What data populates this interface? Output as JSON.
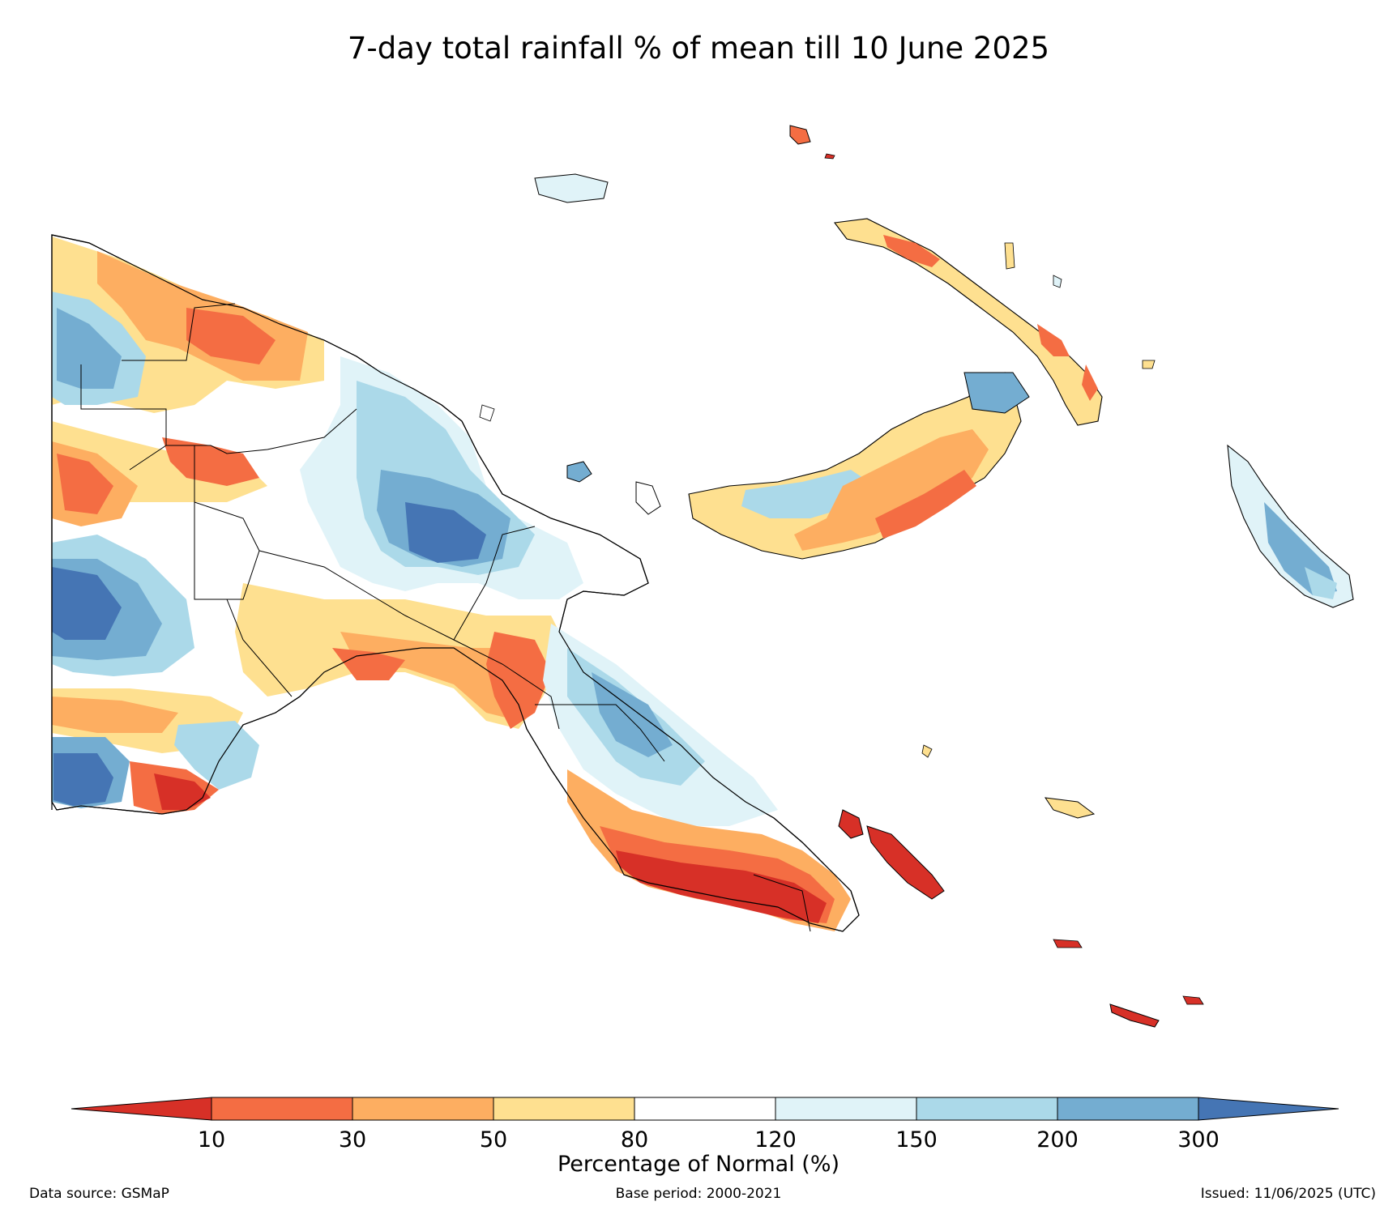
{
  "title": "7-day total rainfall % of mean till 10 June 2025",
  "colorbar": {
    "title": "Percentage of Normal (%)",
    "ticks": [
      "10",
      "30",
      "50",
      "80",
      "120",
      "150",
      "200",
      "300"
    ],
    "colors": [
      "#d73027",
      "#f46d43",
      "#fdae61",
      "#fee090",
      "#ffffff",
      "#e0f3f8",
      "#abd9e9",
      "#74add1",
      "#4575b4"
    ]
  },
  "footer": {
    "source": "Data source: GSMaP",
    "base_period": "Base period: 2000-2021",
    "issued": "Issued: 11/06/2025 (UTC)"
  },
  "palette": {
    "very_dry": "#d73027",
    "dry": "#f46d43",
    "moderately_dry": "#fdae61",
    "slightly_dry": "#fee090",
    "normal": "#ffffff",
    "slightly_wet": "#e0f3f8",
    "moderately_wet": "#abd9e9",
    "wet": "#74add1",
    "very_wet": "#4575b4"
  }
}
